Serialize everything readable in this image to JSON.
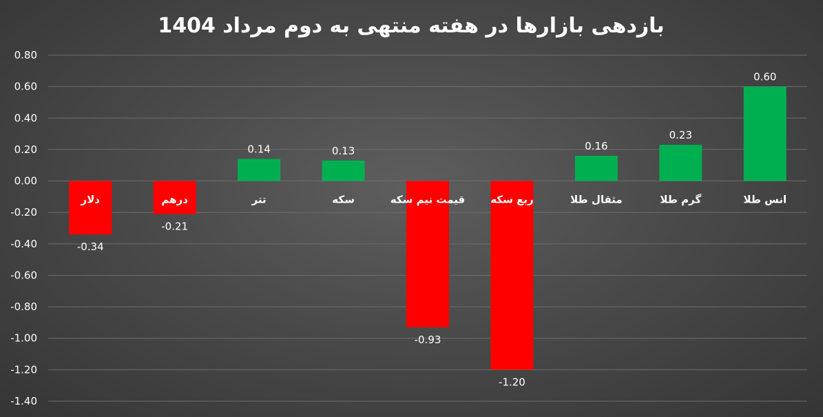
{
  "chart_data": {
    "type": "bar",
    "title": "بازدهی بازارها در هفته منتهی به دوم مرداد 1404",
    "categories": [
      "دلار",
      "درهم",
      "تتر",
      "سکه",
      "قیمت نیم سکه",
      "ربع سکه",
      "مثقال طلا",
      "گرم طلا",
      "انس طلا"
    ],
    "values": [
      -0.34,
      -0.21,
      0.14,
      0.13,
      -0.93,
      -1.2,
      0.16,
      0.23,
      0.6
    ],
    "value_labels": [
      "-0.34",
      "-0.21",
      "0.14",
      "0.13",
      "-0.93",
      "-1.20",
      "0.16",
      "0.23",
      "0.60"
    ],
    "yticks": [
      "0.80",
      "0.60",
      "0.40",
      "0.20",
      "0.00",
      "-0.20",
      "-0.40",
      "-0.60",
      "-0.80",
      "-1.00",
      "-1.20",
      "-1.40"
    ],
    "ylim": [
      -1.4,
      0.8
    ],
    "grid": true,
    "colors": {
      "positive": "#00b050",
      "negative": "#ff0000",
      "text": "#ffffff",
      "grid": "#6e6e6e"
    }
  }
}
